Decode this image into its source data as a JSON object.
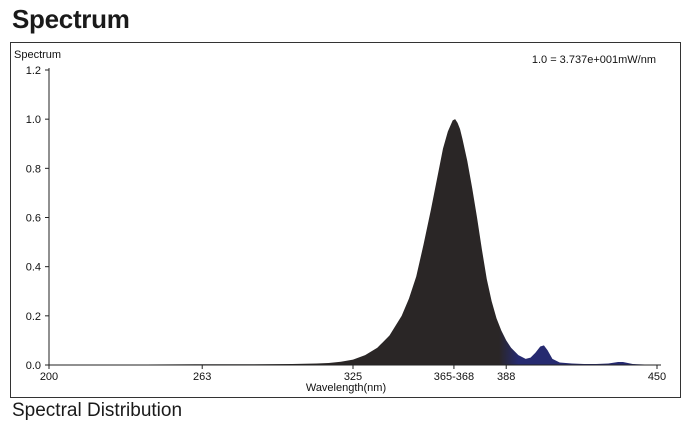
{
  "page": {
    "title": "Spectrum",
    "caption": "Spectral Distribution"
  },
  "chart_data": {
    "type": "area",
    "title": "",
    "xlabel": "Wavelength(nm)",
    "ylabel": "Spectrum",
    "annotation": "1.0 = 3.737e+001mW/nm",
    "xlim": [
      200,
      450
    ],
    "ylim": [
      0,
      1.2
    ],
    "x_ticks": [
      {
        "value": 200,
        "label": "200"
      },
      {
        "value": 263,
        "label": "263"
      },
      {
        "value": 325,
        "label": "325"
      },
      {
        "value": 366.5,
        "label": "365-368"
      },
      {
        "value": 388,
        "label": "388"
      },
      {
        "value": 450,
        "label": "450"
      }
    ],
    "y_ticks": [
      {
        "value": 0.0,
        "label": "0.0"
      },
      {
        "value": 0.2,
        "label": "0.2"
      },
      {
        "value": 0.4,
        "label": "0.4"
      },
      {
        "value": 0.6,
        "label": "0.6"
      },
      {
        "value": 0.8,
        "label": "0.8"
      },
      {
        "value": 1.0,
        "label": "1.0"
      },
      {
        "value": 1.2,
        "label": "1.2"
      }
    ],
    "colors": {
      "main": "#2a2626",
      "tail": "#262a70"
    },
    "series": [
      {
        "x": [
          200,
          220,
          240,
          260,
          280,
          300,
          310,
          315,
          320,
          325,
          330,
          335,
          340,
          345,
          348,
          351,
          354,
          357,
          360,
          362,
          364,
          366,
          367,
          368,
          369,
          370,
          372,
          374,
          376,
          378,
          380,
          382,
          384,
          386,
          388,
          390,
          393,
          396,
          398,
          400,
          402,
          403.5,
          405,
          407,
          410,
          415,
          420,
          425,
          430,
          432,
          434,
          436,
          438,
          440,
          445,
          450
        ],
        "values": [
          0.0,
          0.0,
          0.002,
          0.003,
          0.003,
          0.004,
          0.006,
          0.008,
          0.013,
          0.022,
          0.04,
          0.07,
          0.12,
          0.2,
          0.27,
          0.36,
          0.49,
          0.63,
          0.78,
          0.88,
          0.95,
          0.995,
          1.0,
          0.985,
          0.96,
          0.92,
          0.83,
          0.72,
          0.6,
          0.47,
          0.35,
          0.26,
          0.19,
          0.14,
          0.1,
          0.07,
          0.04,
          0.025,
          0.03,
          0.05,
          0.075,
          0.08,
          0.06,
          0.025,
          0.01,
          0.006,
          0.004,
          0.004,
          0.006,
          0.009,
          0.012,
          0.012,
          0.008,
          0.004,
          0.002,
          0.0
        ]
      }
    ],
    "grid": false
  }
}
